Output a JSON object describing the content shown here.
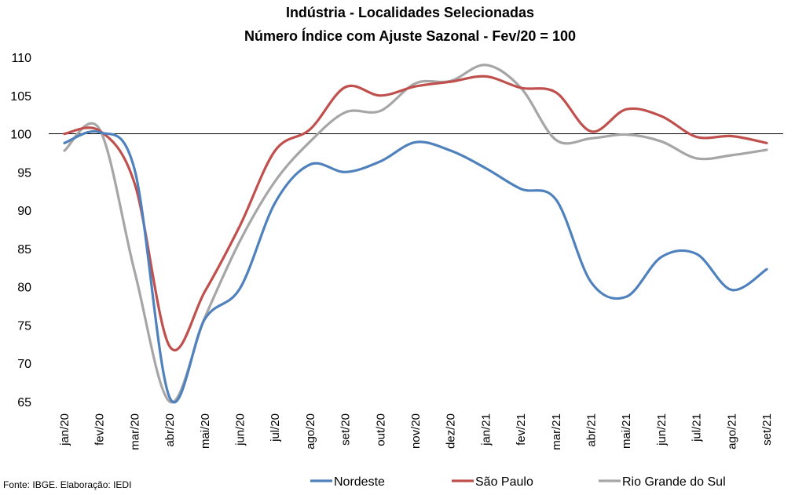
{
  "chart_data": {
    "type": "line",
    "title": "Indústria - Localidades Selecionadas",
    "subtitle": "Número Índice com Ajuste Sazonal - Fev/20 = 100",
    "categories": [
      "jan/20",
      "fev/20",
      "mar/20",
      "abr/20",
      "mai/20",
      "jun/20",
      "jul/20",
      "ago/20",
      "set/20",
      "out/20",
      "nov/20",
      "dez/20",
      "jan/21",
      "fev/21",
      "mar/21",
      "abr/21",
      "mai/21",
      "jun/21",
      "jul/21",
      "ago/21",
      "set/21"
    ],
    "ylim": [
      65,
      110
    ],
    "yticks": [
      65,
      70,
      75,
      80,
      85,
      90,
      95,
      100,
      105,
      110
    ],
    "reference_line": 100,
    "legend_position": "bottom",
    "series": [
      {
        "name": "Nordeste",
        "color": "#4F81BD",
        "values": [
          98.8,
          100.2,
          95.3,
          65.5,
          75.8,
          79.8,
          91.0,
          96.0,
          95.0,
          96.4,
          98.9,
          97.8,
          95.5,
          92.8,
          91.4,
          80.6,
          78.7,
          83.9,
          84.3,
          79.6,
          82.3
        ]
      },
      {
        "name": "São Paulo",
        "color": "#C0504D",
        "values": [
          100.0,
          100.4,
          93.5,
          72.2,
          79.4,
          88.0,
          97.8,
          100.6,
          106.1,
          105.0,
          106.2,
          106.8,
          107.5,
          106.0,
          105.4,
          100.3,
          103.2,
          102.3,
          99.6,
          99.7,
          98.8
        ]
      },
      {
        "name": "Rio Grande do Sul",
        "color": "#A6A6A6",
        "values": [
          97.8,
          100.6,
          82.0,
          65.0,
          76.0,
          86.0,
          93.8,
          99.0,
          102.8,
          103.0,
          106.6,
          106.9,
          109.0,
          106.0,
          99.2,
          99.4,
          99.9,
          99.0,
          96.8,
          97.2,
          97.9
        ]
      }
    ]
  },
  "source_note": "Fonte: IBGE. Elaboração: IEDI"
}
